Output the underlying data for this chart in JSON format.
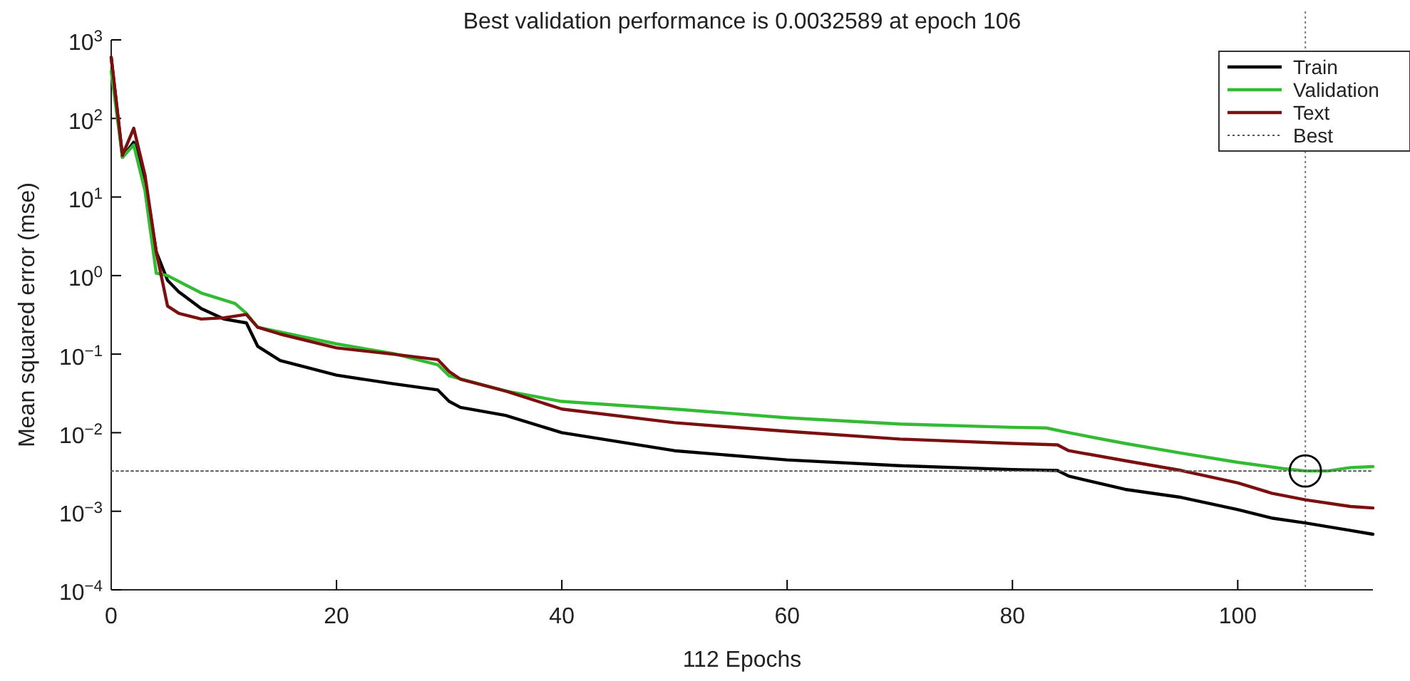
{
  "chart_data": {
    "type": "line",
    "title": "Best validation performance is 0.0032589 at epoch 106",
    "xlabel": "112 Epochs",
    "ylabel": "Mean squared error (mse)",
    "log": "y",
    "grid": false,
    "legend": "top right",
    "xlim": [
      0,
      112
    ],
    "xticks": [
      0,
      20,
      40,
      60,
      80,
      100
    ],
    "ylim": [
      0.0001,
      1000
    ],
    "yticks": [
      {
        "value": 1000,
        "label": "10$^{3}$"
      },
      {
        "value": 100,
        "label": "10$^{2}$"
      },
      {
        "value": 10,
        "label": "10$^{1}$"
      },
      {
        "value": 1,
        "label": "10$^{0}$"
      },
      {
        "value": 0.1,
        "label": "10$^{−1}$"
      },
      {
        "value": 0.01,
        "label": "10$^{−2}$"
      },
      {
        "value": 0.001,
        "label": "10$^{−3}$"
      },
      {
        "value": 0.0001,
        "label": "10$^{−4}$"
      }
    ],
    "ref_lines": [
      {
        "axis": "x",
        "value": 106,
        "color": "#777777",
        "line_style": "dotted"
      }
    ],
    "series": [
      {
        "name": "Train",
        "color": "#000000",
        "line_style": "solid",
        "x": [
          0,
          1,
          2,
          3,
          4,
          5,
          6,
          8,
          10,
          12,
          13,
          15,
          20,
          25,
          29,
          30,
          31,
          35,
          40,
          50,
          60,
          70,
          80,
          84,
          85,
          90,
          95,
          100,
          103,
          106,
          110,
          112
        ],
        "values": [
          600,
          32,
          50,
          16,
          2.0,
          0.87,
          0.62,
          0.38,
          0.28,
          0.25,
          0.126,
          0.083,
          0.054,
          0.042,
          0.035,
          0.025,
          0.021,
          0.0166,
          0.01,
          0.0059,
          0.0045,
          0.0038,
          0.0034,
          0.0033,
          0.0028,
          0.0019,
          0.0015,
          0.00105,
          0.00082,
          0.00071,
          0.00057,
          0.00051
        ]
      },
      {
        "name": "Validation",
        "color": "#33bb33",
        "line_style": "solid",
        "x": [
          0,
          1,
          2,
          3,
          4,
          5,
          8,
          11,
          12,
          13,
          20,
          25,
          29,
          30,
          35,
          40,
          50,
          60,
          70,
          80,
          83,
          85,
          90,
          95,
          100,
          104,
          106,
          108,
          110,
          112
        ],
        "values": [
          400,
          32,
          46,
          12,
          1.07,
          1.0,
          0.6,
          0.44,
          0.33,
          0.22,
          0.135,
          0.102,
          0.073,
          0.053,
          0.034,
          0.025,
          0.02,
          0.0155,
          0.0129,
          0.0117,
          0.0115,
          0.01,
          0.0073,
          0.0055,
          0.0042,
          0.0035,
          0.00326,
          0.00326,
          0.0036,
          0.0037
        ]
      },
      {
        "name": "Text",
        "color": "#7a1010",
        "line_style": "solid",
        "x": [
          0,
          1,
          2,
          3,
          4,
          5,
          6,
          8,
          10,
          12,
          13,
          15,
          20,
          25,
          29,
          30,
          31,
          35,
          40,
          50,
          60,
          70,
          80,
          84,
          85,
          90,
          95,
          100,
          103,
          106,
          110,
          112
        ],
        "values": [
          600,
          34,
          75,
          19,
          2.0,
          0.41,
          0.33,
          0.28,
          0.29,
          0.32,
          0.22,
          0.18,
          0.12,
          0.1,
          0.085,
          0.06,
          0.048,
          0.034,
          0.02,
          0.0134,
          0.0104,
          0.0083,
          0.0073,
          0.007,
          0.0059,
          0.0044,
          0.0033,
          0.0023,
          0.0017,
          0.0014,
          0.00115,
          0.0011
        ]
      },
      {
        "name": "Best",
        "color": "#555555",
        "line_style": "dotted",
        "x": [
          0,
          112
        ],
        "values": [
          0.0032589,
          0.0032589
        ]
      },
      {
        "type": "scatter",
        "marker": "circle",
        "color": "#000000",
        "x": [
          106
        ],
        "values": [
          0.0032589
        ]
      }
    ]
  }
}
